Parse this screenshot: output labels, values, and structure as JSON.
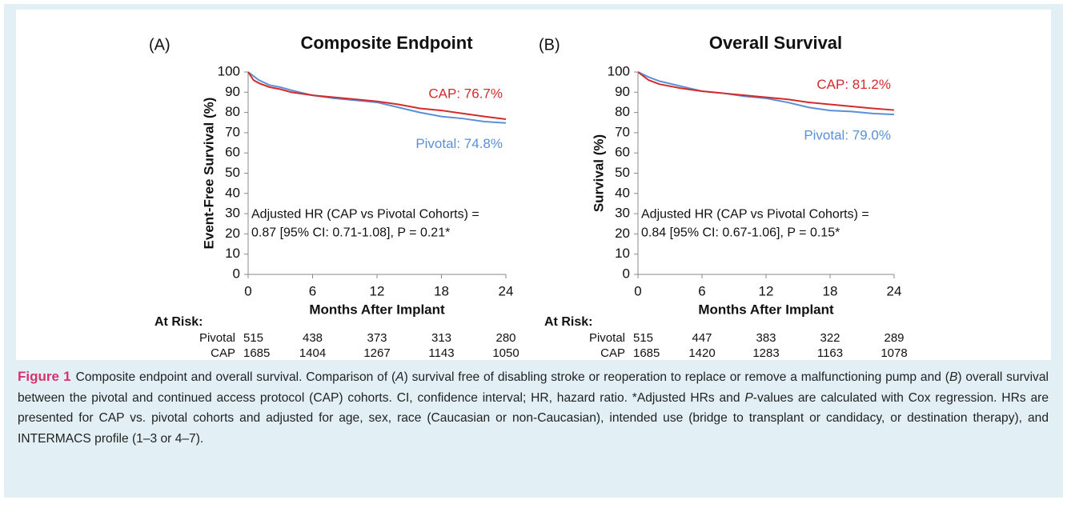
{
  "chart_data": [
    {
      "type": "line",
      "panel": "(A)",
      "title": "Composite Endpoint",
      "ylabel": "Event-Free Survival (%)",
      "xlabel": "Months After Implant",
      "x": [
        0,
        0.5,
        1,
        2,
        3,
        4,
        6,
        8,
        10,
        12,
        14,
        16,
        18,
        20,
        22,
        24
      ],
      "xlim": [
        0,
        24
      ],
      "xticks": [
        0,
        6,
        12,
        18,
        24
      ],
      "ylim": [
        0,
        100
      ],
      "yticks": [
        0,
        10,
        20,
        30,
        40,
        50,
        60,
        70,
        80,
        90,
        100
      ],
      "series": [
        {
          "name": "Pivotal",
          "color": "#5b8fd6",
          "values": [
            100,
            98,
            96,
            93.5,
            92.5,
            91,
            88.5,
            87,
            86,
            85,
            82.5,
            80,
            78,
            77,
            75.5,
            74.8
          ],
          "end_label": "Pivotal: 74.8%",
          "at_risk": [
            515,
            438,
            373,
            313,
            280
          ]
        },
        {
          "name": "CAP",
          "color": "#d42a2a",
          "values": [
            100,
            96,
            94.5,
            92.5,
            91.5,
            90,
            88.5,
            87.5,
            86.5,
            85.5,
            84,
            82,
            81,
            79.5,
            78,
            76.7
          ],
          "end_label": "CAP: 76.7%",
          "at_risk": [
            1685,
            1404,
            1267,
            1143,
            1050
          ]
        }
      ],
      "note": [
        "Adjusted HR (CAP vs Pivotal Cohorts) =",
        "0.87 [95% CI: 0.71-1.08], P = 0.21*"
      ],
      "at_risk_label": "At Risk:"
    },
    {
      "type": "line",
      "panel": "(B)",
      "title": "Overall Survival",
      "ylabel": "Survival (%)",
      "xlabel": "Months After Implant",
      "x": [
        0,
        1,
        2,
        4,
        6,
        8,
        10,
        12,
        14,
        16,
        18,
        20,
        22,
        24
      ],
      "xlim": [
        0,
        24
      ],
      "xticks": [
        0,
        6,
        12,
        18,
        24
      ],
      "ylim": [
        0,
        100
      ],
      "yticks": [
        0,
        10,
        20,
        30,
        40,
        50,
        60,
        70,
        80,
        90,
        100
      ],
      "series": [
        {
          "name": "Pivotal",
          "color": "#5b8fd6",
          "values": [
            100,
            97.5,
            95.5,
            93,
            90.5,
            89.5,
            88,
            87,
            85,
            82.5,
            81,
            80.5,
            79.5,
            79.0
          ],
          "end_label": "Pivotal: 79.0%",
          "at_risk": [
            515,
            447,
            383,
            322,
            289
          ]
        },
        {
          "name": "CAP",
          "color": "#d42a2a",
          "values": [
            100,
            96,
            94,
            92,
            90.5,
            89.5,
            88.5,
            87.5,
            86.5,
            85,
            84,
            83,
            82,
            81.2
          ],
          "end_label": "CAP: 81.2%",
          "at_risk": [
            1685,
            1420,
            1283,
            1163,
            1078
          ]
        }
      ],
      "note": [
        "Adjusted HR (CAP vs Pivotal Cohorts) =",
        "0.84 [95% CI: 0.67-1.06], P = 0.15*"
      ],
      "at_risk_label": "At Risk:"
    }
  ],
  "caption": {
    "label": "Figure 1",
    "segments": [
      "Composite endpoint and overall survival. Comparison of (",
      "A",
      ") survival free of disabling stroke or reoperation to replace or remove a malfunctioning pump and (",
      "B",
      ") overall survival between the pivotal and continued access protocol (CAP) cohorts. CI, confidence interval; HR, hazard ratio. *Adjusted HRs and ",
      "P",
      "-values are calculated with Cox regression. HRs are presented for CAP vs. pivotal cohorts and adjusted for age, sex, race (Caucasian or non-Caucasian), intended use (bridge to transplant or candidacy, or destination therapy), and INTERMACS profile (1–3 or 4–7)."
    ]
  }
}
